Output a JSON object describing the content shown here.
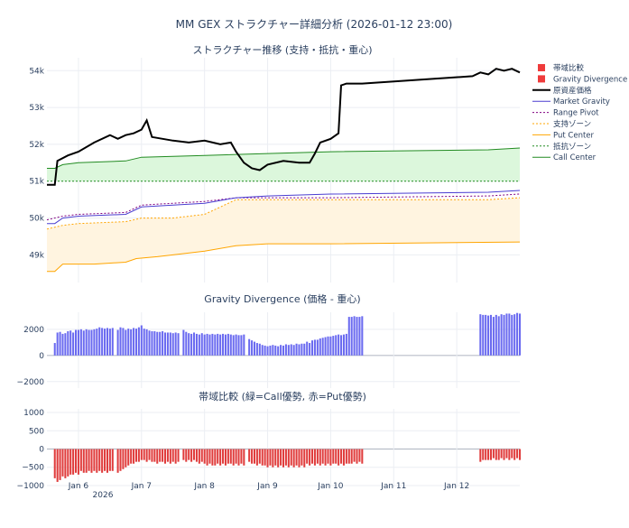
{
  "title": "MM GEX ストラクチャー詳細分析 (2026-01-12 23:00)",
  "chart_data": [
    {
      "type": "line",
      "title": "ストラクチャー推移 (支持・抵抗・重心)",
      "x_range": [
        "2026-01-05 12:00",
        "2026-01-13 00:00"
      ],
      "ylim": [
        48250,
        54350
      ],
      "yticks": [
        49000,
        50000,
        51000,
        52000,
        53000,
        54000
      ],
      "ytick_labels": [
        "49k",
        "50k",
        "51k",
        "52k",
        "53k",
        "54k"
      ],
      "legend_position": "right",
      "series": [
        {
          "name": "原資産価格",
          "color": "#000000",
          "style": "solid",
          "points": [
            [
              "2026-01-05 12:00",
              50900
            ],
            [
              "2026-01-05 15:00",
              50900
            ],
            [
              "2026-01-05 16:00",
              51550
            ],
            [
              "2026-01-05 20:00",
              51700
            ],
            [
              "2026-01-06 00:00",
              51800
            ],
            [
              "2026-01-06 06:00",
              52050
            ],
            [
              "2026-01-06 12:00",
              52250
            ],
            [
              "2026-01-06 15:00",
              52150
            ],
            [
              "2026-01-06 18:00",
              52250
            ],
            [
              "2026-01-06 21:00",
              52300
            ],
            [
              "2026-01-07 00:00",
              52400
            ],
            [
              "2026-01-07 02:00",
              52650
            ],
            [
              "2026-01-07 04:00",
              52200
            ],
            [
              "2026-01-07 08:00",
              52150
            ],
            [
              "2026-01-07 12:00",
              52100
            ],
            [
              "2026-01-07 18:00",
              52050
            ],
            [
              "2026-01-08 00:00",
              52100
            ],
            [
              "2026-01-08 06:00",
              52000
            ],
            [
              "2026-01-08 10:00",
              52050
            ],
            [
              "2026-01-08 12:00",
              51800
            ],
            [
              "2026-01-08 15:00",
              51500
            ],
            [
              "2026-01-08 18:00",
              51350
            ],
            [
              "2026-01-08 21:00",
              51300
            ],
            [
              "2026-01-09 00:00",
              51450
            ],
            [
              "2026-01-09 06:00",
              51550
            ],
            [
              "2026-01-09 12:00",
              51500
            ],
            [
              "2026-01-09 16:00",
              51500
            ],
            [
              "2026-01-09 18:00",
              51750
            ],
            [
              "2026-01-09 20:00",
              52050
            ],
            [
              "2026-01-10 00:00",
              52150
            ],
            [
              "2026-01-10 03:00",
              52300
            ],
            [
              "2026-01-10 04:00",
              53600
            ],
            [
              "2026-01-10 06:00",
              53650
            ],
            [
              "2026-01-10 12:00",
              53650
            ],
            [
              "2026-01-12 06:00",
              53850
            ],
            [
              "2026-01-12 09:00",
              53950
            ],
            [
              "2026-01-12 12:00",
              53900
            ],
            [
              "2026-01-12 15:00",
              54050
            ],
            [
              "2026-01-12 18:00",
              54000
            ],
            [
              "2026-01-12 21:00",
              54050
            ],
            [
              "2026-01-13 00:00",
              53950
            ]
          ]
        },
        {
          "name": "Market Gravity",
          "color": "#4b3ed1",
          "style": "solid",
          "points": [
            [
              "2026-01-05 12:00",
              49850
            ],
            [
              "2026-01-05 15:00",
              49850
            ],
            [
              "2026-01-05 18:00",
              50000
            ],
            [
              "2026-01-06 00:00",
              50050
            ],
            [
              "2026-01-06 18:00",
              50100
            ],
            [
              "2026-01-07 00:00",
              50300
            ],
            [
              "2026-01-07 12:00",
              50350
            ],
            [
              "2026-01-08 00:00",
              50400
            ],
            [
              "2026-01-08 12:00",
              50550
            ],
            [
              "2026-01-09 00:00",
              50600
            ],
            [
              "2026-01-10 00:00",
              50650
            ],
            [
              "2026-01-12 12:00",
              50700
            ],
            [
              "2026-01-13 00:00",
              50750
            ]
          ]
        },
        {
          "name": "Range Pivot",
          "color": "#800080",
          "style": "dotted",
          "points": [
            [
              "2026-01-05 12:00",
              49950
            ],
            [
              "2026-01-05 18:00",
              50050
            ],
            [
              "2026-01-06 00:00",
              50100
            ],
            [
              "2026-01-06 18:00",
              50150
            ],
            [
              "2026-01-07 00:00",
              50350
            ],
            [
              "2026-01-07 12:00",
              50400
            ],
            [
              "2026-01-08 00:00",
              50450
            ],
            [
              "2026-01-08 12:00",
              50550
            ],
            [
              "2026-01-09 00:00",
              50550
            ],
            [
              "2026-01-10 00:00",
              50550
            ],
            [
              "2026-01-12 12:00",
              50600
            ],
            [
              "2026-01-13 00:00",
              50650
            ]
          ]
        },
        {
          "name": "支持ゾーン",
          "color": "#ffa500",
          "style": "dotted",
          "points": [
            [
              "2026-01-05 12:00",
              49700
            ],
            [
              "2026-01-05 18:00",
              49800
            ],
            [
              "2026-01-06 00:00",
              49850
            ],
            [
              "2026-01-06 18:00",
              49900
            ],
            [
              "2026-01-07 00:00",
              50000
            ],
            [
              "2026-01-07 12:00",
              50000
            ],
            [
              "2026-01-08 00:00",
              50100
            ],
            [
              "2026-01-08 12:00",
              50500
            ],
            [
              "2026-01-09 00:00",
              50500
            ],
            [
              "2026-01-10 00:00",
              50500
            ],
            [
              "2026-01-12 12:00",
              50500
            ],
            [
              "2026-01-13 00:00",
              50550
            ]
          ]
        },
        {
          "name": "Put Center",
          "color": "#ffa500",
          "style": "solid",
          "points": [
            [
              "2026-01-05 12:00",
              48550
            ],
            [
              "2026-01-05 15:00",
              48550
            ],
            [
              "2026-01-05 18:00",
              48750
            ],
            [
              "2026-01-06 06:00",
              48750
            ],
            [
              "2026-01-06 18:00",
              48800
            ],
            [
              "2026-01-06 22:00",
              48900
            ],
            [
              "2026-01-07 06:00",
              48950
            ],
            [
              "2026-01-07 12:00",
              49000
            ],
            [
              "2026-01-08 00:00",
              49100
            ],
            [
              "2026-01-08 12:00",
              49250
            ],
            [
              "2026-01-09 00:00",
              49300
            ],
            [
              "2026-01-10 00:00",
              49300
            ],
            [
              "2026-01-13 00:00",
              49350
            ]
          ]
        },
        {
          "name": "抵抗ゾーン",
          "color": "#228b22",
          "style": "dotted",
          "points": [
            [
              "2026-01-05 12:00",
              51000
            ],
            [
              "2026-01-13 00:00",
              51000
            ]
          ]
        },
        {
          "name": "Call Center",
          "color": "#228b22",
          "style": "solid",
          "points": [
            [
              "2026-01-05 12:00",
              51350
            ],
            [
              "2026-01-05 15:00",
              51350
            ],
            [
              "2026-01-05 18:00",
              51450
            ],
            [
              "2026-01-06 00:00",
              51500
            ],
            [
              "2026-01-06 18:00",
              51550
            ],
            [
              "2026-01-07 00:00",
              51650
            ],
            [
              "2026-01-08 00:00",
              51700
            ],
            [
              "2026-01-09 00:00",
              51750
            ],
            [
              "2026-01-10 00:00",
              51800
            ],
            [
              "2026-01-12 12:00",
              51850
            ],
            [
              "2026-01-13 00:00",
              51900
            ]
          ]
        }
      ]
    },
    {
      "type": "bar",
      "title": "Gravity Divergence (価格 - 重心)",
      "ylim": [
        -2500,
        3300
      ],
      "yticks": [
        -2000,
        0,
        2000
      ],
      "ytick_labels": [
        "−2000",
        "0",
        "2000"
      ],
      "color": "#6a6af0",
      "series": [
        {
          "name": "Gravity Divergence",
          "segments": [
            {
              "start": "2026-01-05 15:00",
              "values": [
                950,
                1750,
                1800,
                1650,
                1700,
                1850,
                1900,
                1750,
                1950,
                1950,
                2000,
                1900,
                2000,
                1950,
                1950,
                2000,
                2050,
                2150,
                2100,
                2050,
                2100,
                2050,
                2100
              ]
            },
            {
              "start": "2026-01-06 15:00",
              "values": [
                1950,
                2150,
                2100,
                1950,
                2050,
                2000,
                2100,
                2050,
                2150,
                2300,
                2050,
                2000,
                1900,
                1850,
                1850,
                1800,
                1800,
                1850,
                1750,
                1750,
                1750,
                1700,
                1750,
                1700
              ]
            },
            {
              "start": "2026-01-07 16:00",
              "values": [
                1950,
                1800,
                1700,
                1650,
                1750,
                1650,
                1600,
                1700,
                1600,
                1650,
                1600,
                1650,
                1600,
                1650,
                1600,
                1650,
                1600,
                1650,
                1600,
                1550,
                1600,
                1550,
                1550,
                1600
              ]
            },
            {
              "start": "2026-01-08 17:00",
              "values": [
                1250,
                1150,
                1050,
                950,
                900,
                800,
                750,
                700,
                750,
                800,
                750,
                700,
                800,
                750,
                850,
                800,
                850,
                800,
                900,
                850,
                900,
                900
              ]
            },
            {
              "start": "2026-01-09 15:00",
              "values": [
                1050,
                950,
                1150,
                1200,
                1200,
                1300,
                1350,
                1400,
                1450,
                1450,
                1500,
                1550,
                1600,
                1550,
                1600,
                1650,
                2950,
                2950,
                3000,
                2950,
                2950,
                3000
              ]
            },
            {
              "start": "2026-01-12 09:00",
              "values": [
                3150,
                3100,
                3100,
                3050,
                3100,
                2950,
                3100,
                3000,
                3150,
                3100,
                3200,
                3200,
                3100,
                3150,
                3250,
                3200
              ]
            }
          ]
        }
      ]
    },
    {
      "type": "bar",
      "title": "帯域比較 (緑=Call優勢, 赤=Put優勢)",
      "ylim": [
        -1050,
        1100
      ],
      "yticks": [
        -1000,
        -500,
        0,
        500,
        1000
      ],
      "ytick_labels": [
        "−1000",
        "−500",
        "0",
        "500",
        "1000"
      ],
      "xticks": [
        "2026-01-06",
        "2026-01-07",
        "2026-01-08",
        "2026-01-09",
        "2026-01-10",
        "2026-01-11",
        "2026-01-12"
      ],
      "xtick_labels": [
        "Jan 6",
        "Jan 7",
        "Jan 8",
        "Jan 9",
        "Jan 10",
        "Jan 11",
        "Jan 12"
      ],
      "x_year_label": "2026",
      "color": "#e03c3c",
      "series": [
        {
          "name": "帯域比較",
          "segments": [
            {
              "start": "2026-01-05 15:00",
              "values": [
                -800,
                -900,
                -850,
                -750,
                -800,
                -750,
                -700,
                -700,
                -650,
                -700,
                -600,
                -650,
                -650,
                -600,
                -650,
                -600,
                -650,
                -600,
                -650,
                -600,
                -650,
                -600,
                -600
              ]
            },
            {
              "start": "2026-01-06 15:00",
              "values": [
                -650,
                -600,
                -550,
                -500,
                -450,
                -400,
                -400,
                -350,
                -350,
                -300,
                -300,
                -350,
                -300,
                -350,
                -350,
                -400,
                -350,
                -350,
                -400,
                -350,
                -400,
                -350,
                -400,
                -350
              ]
            },
            {
              "start": "2026-01-07 16:00",
              "values": [
                -300,
                -350,
                -300,
                -350,
                -300,
                -350,
                -400,
                -350,
                -400,
                -450,
                -400,
                -450,
                -450,
                -400,
                -450,
                -400,
                -450,
                -400,
                -400,
                -450,
                -400,
                -450,
                -400,
                -450
              ]
            },
            {
              "start": "2026-01-08 17:00",
              "values": [
                -350,
                -400,
                -400,
                -450,
                -400,
                -450,
                -450,
                -500,
                -450,
                -500,
                -450,
                -500,
                -450,
                -500,
                -450,
                -500,
                -450,
                -500,
                -450,
                -500,
                -450,
                -500
              ]
            },
            {
              "start": "2026-01-09 15:00",
              "values": [
                -400,
                -450,
                -400,
                -450,
                -400,
                -450,
                -400,
                -450,
                -400,
                -450,
                -400,
                -400,
                -450,
                -400,
                -450,
                -400,
                -400,
                -400,
                -350,
                -400,
                -350,
                -400
              ]
            },
            {
              "start": "2026-01-12 09:00",
              "values": [
                -350,
                -300,
                -300,
                -300,
                -300,
                -250,
                -300,
                -300,
                -250,
                -300,
                -250,
                -300,
                -250,
                -300,
                -250,
                -300
              ]
            }
          ]
        }
      ]
    }
  ],
  "legend": [
    {
      "label": "帯域比較",
      "kind": "square",
      "color": "#ef3b3b"
    },
    {
      "label": "Gravity Divergence",
      "kind": "square",
      "color": "#ef3b3b"
    },
    {
      "label": "原資産価格",
      "kind": "line",
      "color": "#000000",
      "dash": "solid"
    },
    {
      "label": "Market Gravity",
      "kind": "line",
      "color": "#4b3ed1",
      "dash": "solid"
    },
    {
      "label": "Range Pivot",
      "kind": "line",
      "color": "#800080",
      "dash": "dotted"
    },
    {
      "label": "支持ゾーン",
      "kind": "line",
      "color": "#ffa500",
      "dash": "dotted"
    },
    {
      "label": "Put Center",
      "kind": "line",
      "color": "#ffa500",
      "dash": "solid"
    },
    {
      "label": "抵抗ゾーン",
      "kind": "line",
      "color": "#228b22",
      "dash": "dotted"
    },
    {
      "label": "Call Center",
      "kind": "line",
      "color": "#228b22",
      "dash": "solid"
    }
  ],
  "zone_fills": {
    "support": "#fff4e0",
    "resistance": "#dcf7dc"
  }
}
